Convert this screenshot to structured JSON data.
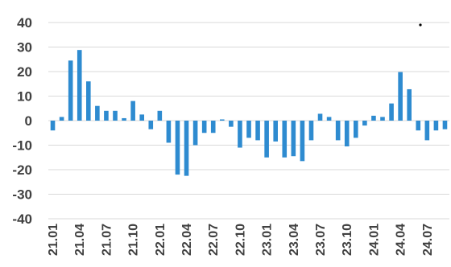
{
  "chart_data": {
    "type": "bar",
    "xlabel": "",
    "ylabel": "",
    "ylim": [
      -40,
      40
    ],
    "yticks": [
      40,
      30,
      20,
      10,
      0,
      -10,
      -20,
      -30,
      -40
    ],
    "grid": true,
    "legend": "none",
    "color": "#2e8bd0",
    "x_labels": [
      "21.01",
      "21.04",
      "21.07",
      "21.10",
      "22.01",
      "22.04",
      "22.07",
      "22.10",
      "23.01",
      "23.04",
      "23.07",
      "23.10",
      "24.01",
      "24.04",
      "24.07"
    ],
    "categories": [
      "21.01",
      "21.02",
      "21.03",
      "21.04",
      "21.05",
      "21.06",
      "21.07",
      "21.08",
      "21.09",
      "21.10",
      "21.11",
      "21.12",
      "22.01",
      "22.02",
      "22.03",
      "22.04",
      "22.05",
      "22.06",
      "22.07",
      "22.08",
      "22.09",
      "22.10",
      "22.11",
      "22.12",
      "23.01",
      "23.02",
      "23.03",
      "23.04",
      "23.05",
      "23.06",
      "23.07",
      "23.08",
      "23.09",
      "23.10",
      "23.11",
      "23.12",
      "24.01",
      "24.02",
      "24.03",
      "24.04",
      "24.05",
      "24.06",
      "24.07",
      "24.08",
      "24.09"
    ],
    "values": [
      -4,
      1.5,
      24.5,
      28.8,
      16,
      6,
      4,
      4,
      1,
      8,
      2.5,
      -3.5,
      4,
      -9,
      -22,
      -22.5,
      -10,
      -5,
      -5,
      0.5,
      -2.5,
      -11,
      -7,
      -8,
      -15,
      -8.5,
      -15,
      -14.5,
      -16.5,
      -8,
      2.8,
      1.5,
      -8,
      -10.5,
      -7,
      -2,
      2,
      1.5,
      7,
      19.8,
      12.8,
      -4,
      -8,
      -4,
      -3.5
    ]
  }
}
